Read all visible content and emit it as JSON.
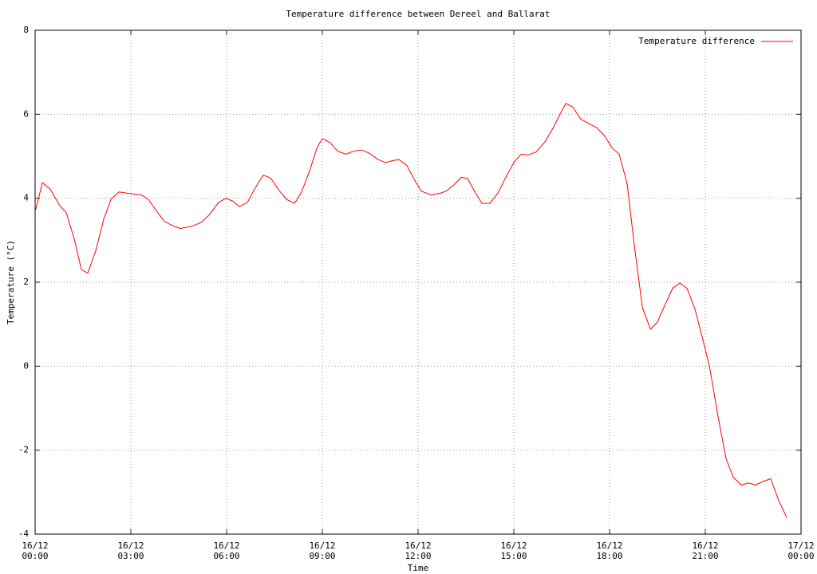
{
  "chart_data": {
    "type": "line",
    "title": "Temperature difference between Dereel and Ballarat",
    "x_label": "Time",
    "y_label": "Temperature (°C)",
    "grid": true,
    "legend": "upper right",
    "xlim": [
      0,
      24
    ],
    "xticks": [
      {
        "value": 0,
        "label": "16/12\n00:00"
      },
      {
        "value": 3,
        "label": "16/12\n03:00"
      },
      {
        "value": 6,
        "label": "16/12\n06:00"
      },
      {
        "value": 9,
        "label": "16/12\n09:00"
      },
      {
        "value": 12,
        "label": "16/12\n12:00"
      },
      {
        "value": 15,
        "label": "16/12\n15:00"
      },
      {
        "value": 18,
        "label": "16/12\n18:00"
      },
      {
        "value": 21,
        "label": "16/12\n21:00"
      },
      {
        "value": 24,
        "label": "17/12\n00:00"
      }
    ],
    "ylim": [
      -4,
      8
    ],
    "yticks": [
      -4,
      -2,
      0,
      2,
      4,
      6,
      8
    ],
    "x": [
      0,
      0.23,
      0.48,
      0.75,
      0.98,
      1.23,
      1.45,
      1.65,
      1.9,
      2.15,
      2.38,
      2.63,
      2.9,
      3.33,
      3.55,
      3.8,
      4.05,
      4.3,
      4.55,
      4.9,
      5.2,
      5.45,
      5.75,
      5.98,
      6.2,
      6.4,
      6.65,
      6.9,
      7.15,
      7.38,
      7.63,
      7.88,
      8.13,
      8.35,
      8.6,
      8.83,
      9.0,
      9.25,
      9.48,
      9.73,
      9.98,
      10.23,
      10.48,
      10.73,
      10.98,
      11.23,
      11.4,
      11.65,
      11.88,
      12.1,
      12.4,
      12.7,
      12.9,
      13.1,
      13.35,
      13.55,
      13.78,
      14.0,
      14.25,
      14.5,
      14.75,
      15.0,
      15.23,
      15.45,
      15.7,
      15.98,
      16.25,
      16.48,
      16.63,
      16.85,
      17.1,
      17.35,
      17.6,
      17.85,
      18.08,
      18.3,
      18.55,
      18.78,
      19.03,
      19.28,
      19.5,
      19.73,
      19.98,
      20.2,
      20.43,
      20.68,
      20.9,
      21.13,
      21.4,
      21.65,
      21.88,
      22.13,
      22.35,
      22.58,
      22.83,
      23.05,
      23.3,
      23.55
    ],
    "series": [
      {
        "name": "Temperature difference",
        "color": "#ff0000",
        "values": [
          3.68,
          4.37,
          4.21,
          3.85,
          3.65,
          3.02,
          2.3,
          2.22,
          2.75,
          3.5,
          3.98,
          4.15,
          4.12,
          4.08,
          3.97,
          3.7,
          3.45,
          3.35,
          3.28,
          3.33,
          3.42,
          3.6,
          3.9,
          4.0,
          3.93,
          3.8,
          3.9,
          4.25,
          4.55,
          4.48,
          4.2,
          3.97,
          3.88,
          4.15,
          4.65,
          5.2,
          5.42,
          5.32,
          5.12,
          5.05,
          5.12,
          5.15,
          5.07,
          4.93,
          4.85,
          4.9,
          4.92,
          4.78,
          4.45,
          4.17,
          4.08,
          4.12,
          4.18,
          4.3,
          4.5,
          4.47,
          4.15,
          3.88,
          3.88,
          4.12,
          4.5,
          4.85,
          5.05,
          5.03,
          5.1,
          5.35,
          5.7,
          6.05,
          6.26,
          6.17,
          5.88,
          5.78,
          5.68,
          5.48,
          5.2,
          5.05,
          4.35,
          2.85,
          1.4,
          0.88,
          1.05,
          1.45,
          1.86,
          1.98,
          1.85,
          1.35,
          0.7,
          0.0,
          -1.2,
          -2.2,
          -2.65,
          -2.83,
          -2.78,
          -2.83,
          -2.74,
          -2.68,
          -3.2,
          -3.6
        ]
      }
    ]
  }
}
